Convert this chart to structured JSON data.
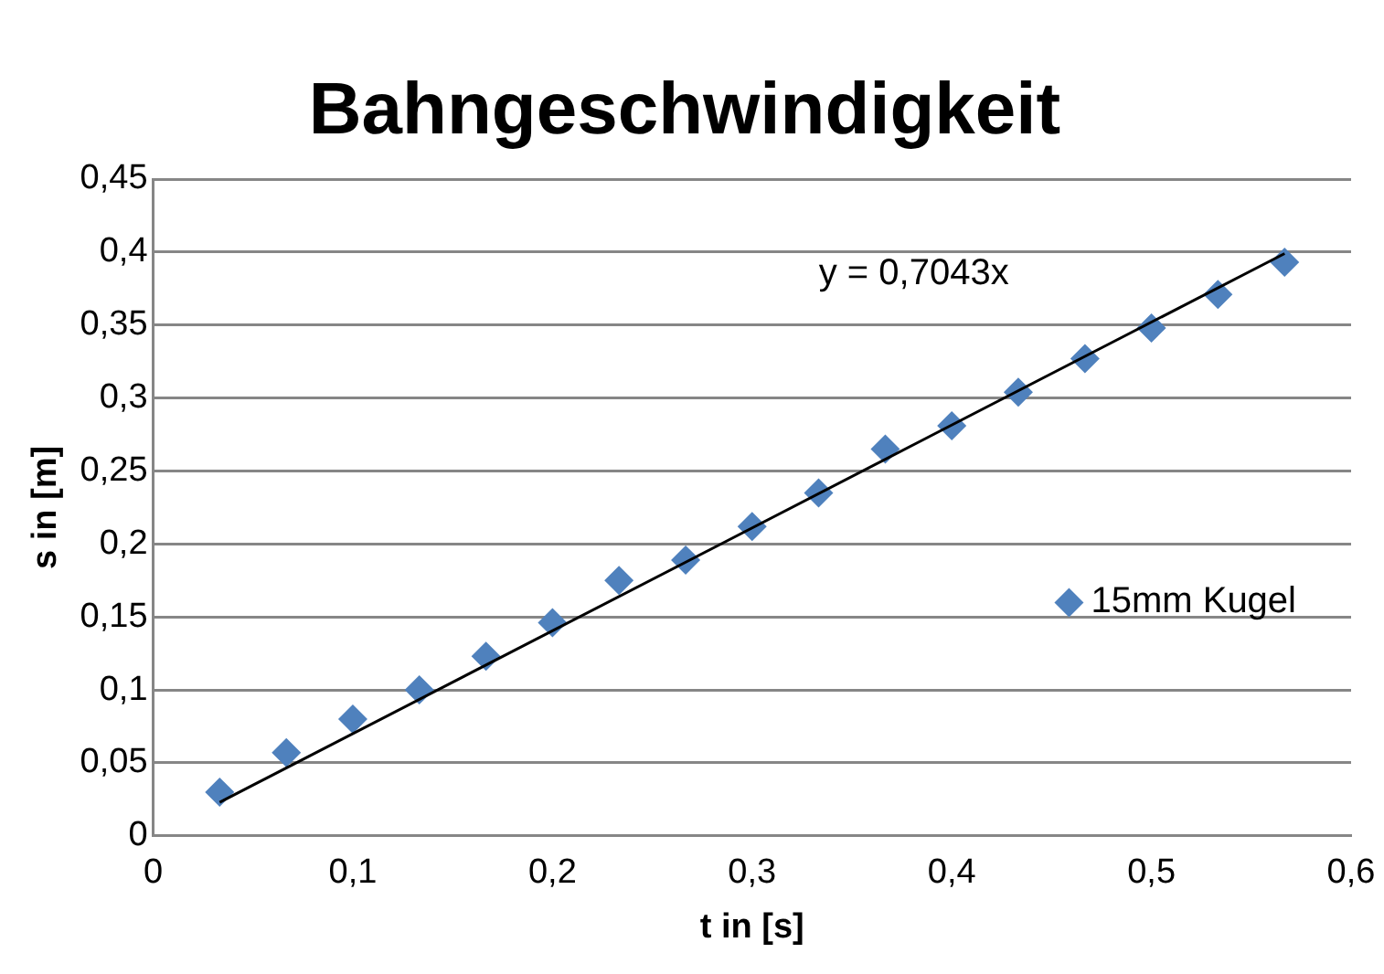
{
  "chart_data": {
    "type": "scatter",
    "title": "Bahngeschwindigkeit",
    "xlabel": "t in [s]",
    "ylabel": "s in [m]",
    "xlim": [
      0,
      0.6
    ],
    "xticks": [
      {
        "value": 0,
        "label": "0"
      },
      {
        "value": 0.1,
        "label": "0,1"
      },
      {
        "value": 0.2,
        "label": "0,2"
      },
      {
        "value": 0.3,
        "label": "0,3"
      },
      {
        "value": 0.4,
        "label": "0,4"
      },
      {
        "value": 0.5,
        "label": "0,5"
      },
      {
        "value": 0.6,
        "label": "0,6"
      }
    ],
    "ylim": [
      0,
      0.45
    ],
    "yticks": [
      {
        "value": 0,
        "label": "0"
      },
      {
        "value": 0.05,
        "label": "0,05"
      },
      {
        "value": 0.1,
        "label": "0,1"
      },
      {
        "value": 0.15,
        "label": "0,15"
      },
      {
        "value": 0.2,
        "label": "0,2"
      },
      {
        "value": 0.25,
        "label": "0,25"
      },
      {
        "value": 0.3,
        "label": "0,3"
      },
      {
        "value": 0.35,
        "label": "0,35"
      },
      {
        "value": 0.4,
        "label": "0,4"
      },
      {
        "value": 0.45,
        "label": "0,45"
      }
    ],
    "grid": "y",
    "legend": "right",
    "annotations": [
      "y = 0,7043x"
    ],
    "series": [
      {
        "name": "15mm Kugel",
        "color": "#4f81bd",
        "marker": "diamond",
        "x": [
          0.0333,
          0.0667,
          0.1,
          0.1333,
          0.1667,
          0.2,
          0.2333,
          0.2667,
          0.3,
          0.3333,
          0.3667,
          0.4,
          0.4333,
          0.4667,
          0.5,
          0.5333,
          0.5667
        ],
        "values": [
          0.03,
          0.057,
          0.08,
          0.1,
          0.123,
          0.146,
          0.175,
          0.189,
          0.212,
          0.235,
          0.265,
          0.281,
          0.304,
          0.327,
          0.348,
          0.371,
          0.393
        ]
      },
      {
        "type": "line",
        "color": "#000000",
        "marker": "none",
        "line_style": "solid",
        "x": [
          0.0333,
          0.5667
        ],
        "values": [
          0.023,
          0.399
        ]
      }
    ]
  }
}
